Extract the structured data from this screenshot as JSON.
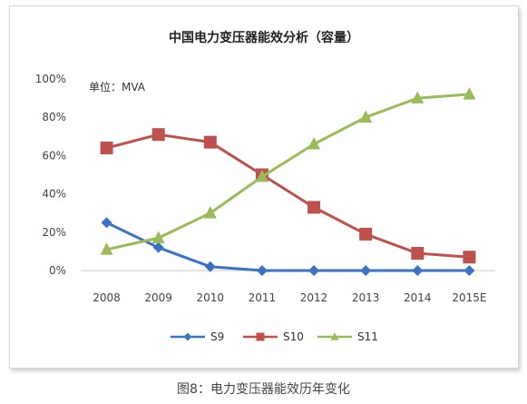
{
  "chart_data": {
    "type": "line",
    "title": "中国电力变压器能效分析（容量）",
    "unit_note": "单位：MVA",
    "categories": [
      "2008",
      "2009",
      "2010",
      "2011",
      "2012",
      "2013",
      "2014",
      "2015E"
    ],
    "ylim": [
      0,
      100
    ],
    "yticks": [
      "0%",
      "20%",
      "40%",
      "60%",
      "80%",
      "100%"
    ],
    "ytick_values": [
      0,
      20,
      40,
      60,
      80,
      100
    ],
    "grid": false,
    "legend_position": "bottom",
    "series": [
      {
        "name": "S9",
        "color": "#3b72c4",
        "marker": "diamond",
        "values": [
          25,
          12,
          2,
          0,
          0,
          0,
          0,
          0
        ]
      },
      {
        "name": "S10",
        "color": "#c0504d",
        "marker": "square",
        "values": [
          64,
          71,
          67,
          50,
          33,
          19,
          9,
          7
        ]
      },
      {
        "name": "S11",
        "color": "#9bbb59",
        "marker": "triangle",
        "values": [
          11,
          17,
          30,
          49,
          66,
          80,
          90,
          92
        ]
      }
    ]
  },
  "caption": "图8：电力变压器能效历年变化"
}
